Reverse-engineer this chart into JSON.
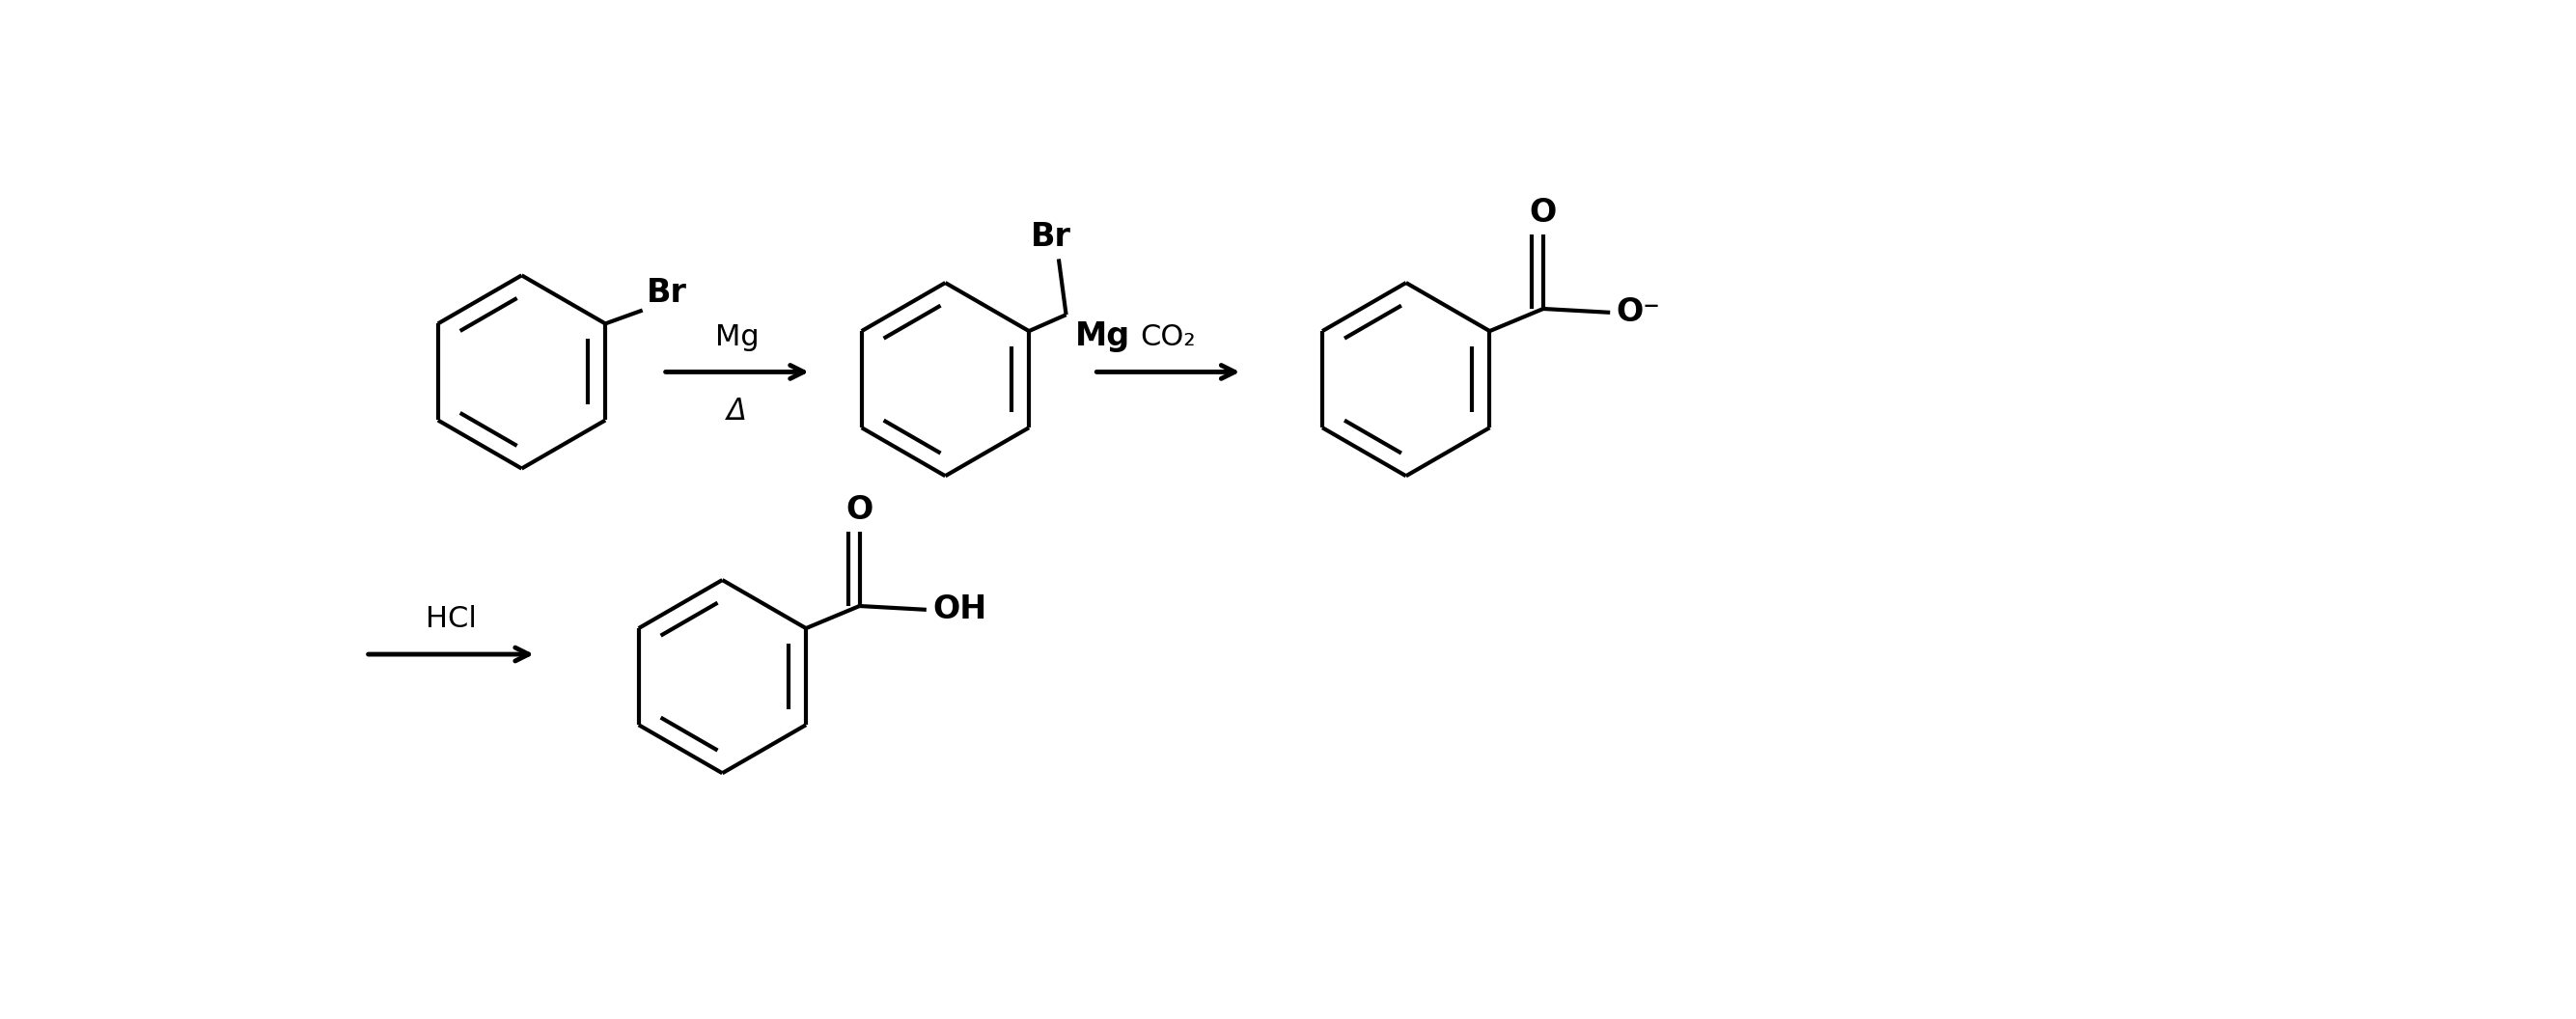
{
  "bg_color": "#ffffff",
  "line_color": "#000000",
  "line_width": 3.0,
  "font_size_atom": 22,
  "fig_width": 26.69,
  "fig_height": 10.56,
  "arrow1_label": "Mg",
  "arrow1_sublabel": "Δ",
  "arrow2_label": "CO₂",
  "arrow3_label": "HCl"
}
